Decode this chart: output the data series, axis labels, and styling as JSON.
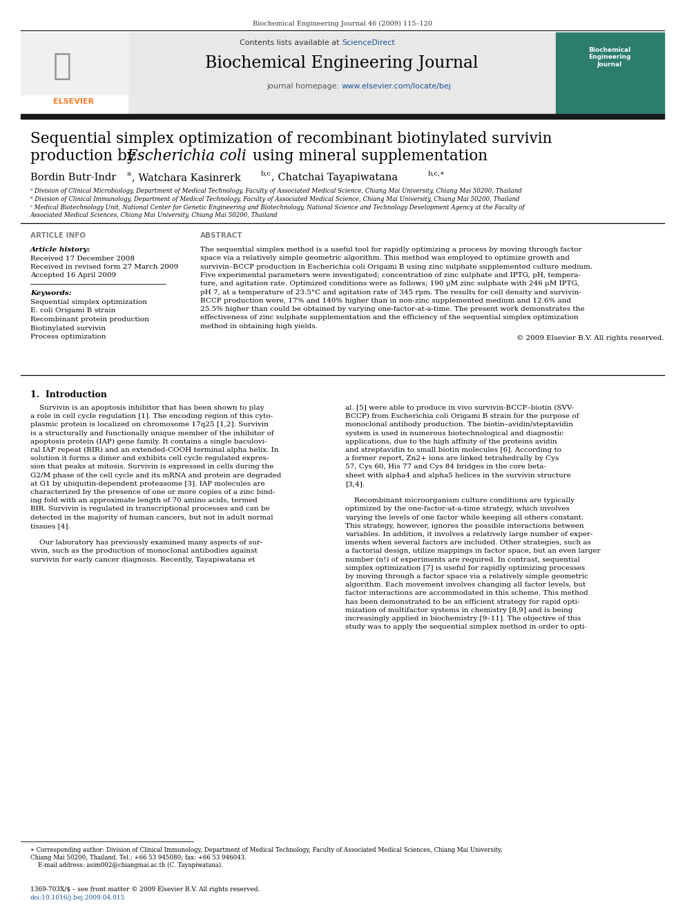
{
  "journal_header": "Biochemical Engineering Journal 46 (2009) 115–120",
  "contents_line_left": "Contents lists available at ",
  "science_direct": "ScienceDirect",
  "journal_name": "Biochemical Engineering Journal",
  "journal_homepage_left": "journal homepage: ",
  "journal_homepage_url": "www.elsevier.com/locate/bej",
  "paper_title_line1": "Sequential simplex optimization of recombinant biotinylated survivin",
  "paper_title_line2_pre": "production by ",
  "paper_title_ecoli": "Escherichia coli",
  "paper_title_line2_post": " using mineral supplementation",
  "author_line_pre": "Bordin Butr-Indr",
  "author_sup1": "a",
  "author_mid1": ", Watchara Kasinrerk",
  "author_sup2": "b,c",
  "author_mid2": ", Chatchai Tayapiwatana ",
  "author_sup3": "b,c,∗",
  "affil_a": "ᵃ Division of Clinical Microbiology, Department of Medical Technology, Faculty of Associated Medical Science, Chiang Mai University, Chiang Mai 50200, Thailand",
  "affil_b": "ᵇ Division of Clinical Immunology, Department of Medical Technology, Faculty of Associated Medical Science, Chiang Mai University, Chiang Mai 50200, Thailand",
  "affil_c1": "ᶜ Medical Biotechnology Unit, National Center for Genetic Engineering and Biotechnology, National Science and Technology Development Agency at the Faculty of",
  "affil_c2": "Associated Medical Sciences, Chiang Mai University, Chiang Mai 50200, Thailand",
  "article_info_label": "ARTICLE INFO",
  "abstract_label": "ABSTRACT",
  "article_history_label": "Article history:",
  "received1": "Received 17 December 2008",
  "received2": "Received in revised form 27 March 2009",
  "accepted": "Accepted 16 April 2009",
  "keywords_label": "Keywords:",
  "kw1": "Sequential simplex optimization",
  "kw2": "E. coli Origami B strain",
  "kw3": "Recombinant protein production",
  "kw4": "Biotinylated survivin",
  "kw5": "Process optimization",
  "abstract_lines": [
    "The sequential simplex method is a useful tool for rapidly optimizing a process by moving through factor",
    "space via a relatively simple geometric algorithm. This method was employed to optimize growth and",
    "survivin–BCCP production in Escherichia coli Origami B using zinc sulphate supplemented culture medium.",
    "Five experimental parameters were investigated; concentration of zinc sulphate and IPTG, pH, tempera-",
    "ture, and agitation rate. Optimized conditions were as follows; 190 μM zinc sulphate with 246 μM IPTG,",
    "pH 7, at a temperature of 23.5°C and agitation rate of 345 rpm. The results for cell density and survivin-",
    "BCCP production were, 17% and 140% higher than in non-zinc supplemented medium and 12.6% and",
    "25.5% higher than could be obtained by varying one-factor-at-a-time. The present work demonstrates the",
    "effectiveness of zinc sulphate supplementation and the efficiency of the sequential simplex optimization",
    "method in obtaining high yields."
  ],
  "copyright": "© 2009 Elsevier B.V. All rights reserved.",
  "section1_title_num": "1.",
  "section1_title_text": "Introduction",
  "intro_left_lines": [
    "    Survivin is an apoptosis inhibitor that has been shown to play",
    "a role in cell cycle regulation [1]. The encoding region of this cyto-",
    "plasmic protein is localized on chromosome 17q25 [1,2]. Survivin",
    "is a structurally and functionally unique member of the inhibitor of",
    "apoptosis protein (IAP) gene family. It contains a single baculovi-",
    "ral IAP repeat (BIR) and an extended-COOH terminal alpha helix. In",
    "solution it forms a dimer and exhibits cell cycle regulated expres-",
    "sion that peaks at mitosis. Survivin is expressed in cells during the",
    "G2/M phase of the cell cycle and its mRNA and protein are degraded",
    "at G1 by ubiquitin-dependent proteasome [3]. IAP molecules are",
    "characterized by the presence of one or more copies of a zinc bind-",
    "ing fold with an approximate length of 70 amino acids, termed",
    "BIR. Survivin is regulated in transcriptional processes and can be",
    "detected in the majority of human cancers, but not in adult normal",
    "tissues [4].",
    "",
    "    Our laboratory has previously examined many aspects of sur-",
    "vivin, such as the production of monoclonal antibodies against",
    "survivin for early cancer diagnosis. Recently, Tayapiwatana et"
  ],
  "intro_right_lines": [
    "al. [5] were able to produce in vivo survivin-BCCP–biotin (SVV-",
    "BCCP) from Escherichia coli Origami B strain for the purpose of",
    "monoclonal antibody production. The biotin–avidin/steptavidin",
    "system is used in numerous biotechnological and diagnostic",
    "applications, due to the high affinity of the proteins avidin",
    "and streptavidin to small biotin molecules [6]. According to",
    "a former report, Zn2+ ions are linked tetrahedrally by Cys",
    "57, Cys 60, His 77 and Cys 84 bridges in the core beta-",
    "sheet with alpha4 and alpha5 helices in the survivin structure",
    "[3,4].",
    "",
    "    Recombinant microorganism culture conditions are typically",
    "optimized by the one-factor-at-a-time strategy, which involves",
    "varying the levels of one factor while keeping all others constant.",
    "This strategy, however, ignores the possible interactions between",
    "variables. In addition, it involves a relatively large number of exper-",
    "iments when several factors are included. Other strategies, such as",
    "a factorial design, utilize mappings in factor space, but an even larger",
    "number (n!) of experiments are required. In contrast, sequential",
    "simplex optimization [7] is useful for rapidly optimizing processes",
    "by moving through a factor space via a relatively simple geometric",
    "algorithm. Each movement involves changing all factor levels, but",
    "factor interactions are accommodated in this scheme. This method",
    "has been demonstrated to be an efficient strategy for rapid opti-",
    "mization of multifactor systems in chemistry [8,9] and is being",
    "increasingly applied in biochemistry [9–11]. The objective of this",
    "study was to apply the sequential simplex method in order to opti-"
  ],
  "footnote_lines": [
    "∗ Corresponding author: Division of Clinical Immunology, Department of Medical Technology, Faculty of Associated Medical Sciences, Chiang Mai University,",
    "Chiang Mai 50200, Thailand. Tel.: +66 53 945080; fax: +66 53 946043.",
    "    E-mail address: asim002@chiangmai.ac.th (C. Tayapiwatana)."
  ],
  "issn_line": "1369-703X/$ – see front matter © 2009 Elsevier B.V. All rights reserved.",
  "doi_line": "doi:10.1016/j.bej.2009.04.015",
  "bg_header_color": "#e8e8e8",
  "blue_color": "#1a5296",
  "orange_color": "#f47920",
  "dark_bar_color": "#1a1a1a",
  "gray_label_color": "#7f7f7f",
  "text_color": "#000000",
  "cover_bg_color": "#2d7d6e"
}
